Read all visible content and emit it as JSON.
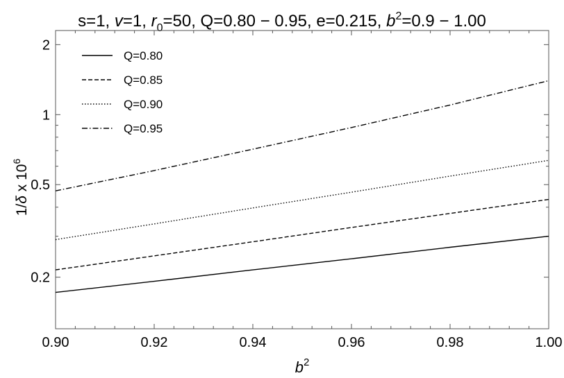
{
  "chart_data": {
    "type": "line",
    "title_parts": [
      "s=1, ",
      "v",
      "=1, ",
      "r",
      "0",
      "=50, Q=0.80 − 0.95, e=0.215, ",
      "b",
      "2",
      "=0.9 − 1.00"
    ],
    "xlabel_parts": [
      "b",
      "2"
    ],
    "ylabel_parts": [
      "1/",
      "δ",
      " x 10",
      "6"
    ],
    "x_scale": "linear",
    "y_scale": "log",
    "xlim": [
      0.9,
      1.0
    ],
    "ylim": [
      0.12,
      2.3
    ],
    "x_ticks": [
      0.9,
      0.92,
      0.94,
      0.96,
      0.98,
      1.0
    ],
    "x_tick_labels": [
      "0.90",
      "0.92",
      "0.94",
      "0.96",
      "0.98",
      "1.00"
    ],
    "y_ticks": [
      0.2,
      0.5,
      1,
      2
    ],
    "y_tick_labels": [
      "0.2",
      "0.5",
      "1",
      "2"
    ],
    "grid": false,
    "legend_placement": "top-left",
    "series": [
      {
        "name": "Q=0.80",
        "dash": "solid",
        "x": [
          0.9,
          0.92,
          0.94,
          0.96,
          0.98,
          1.0
        ],
        "y": [
          0.172,
          0.192,
          0.215,
          0.24,
          0.269,
          0.3
        ]
      },
      {
        "name": "Q=0.85",
        "dash": "dashed",
        "x": [
          0.9,
          0.92,
          0.94,
          0.96,
          0.98,
          1.0
        ],
        "y": [
          0.215,
          0.247,
          0.284,
          0.327,
          0.376,
          0.432
        ]
      },
      {
        "name": "Q=0.90",
        "dash": "dotted",
        "x": [
          0.9,
          0.92,
          0.94,
          0.96,
          0.98,
          1.0
        ],
        "y": [
          0.29,
          0.339,
          0.397,
          0.464,
          0.544,
          0.636
        ]
      },
      {
        "name": "Q=0.95",
        "dash": "dashdot",
        "x": [
          0.9,
          0.92,
          0.94,
          0.96,
          0.98,
          1.0
        ],
        "y": [
          0.47,
          0.575,
          0.71,
          0.88,
          1.1,
          1.4
        ]
      }
    ]
  }
}
